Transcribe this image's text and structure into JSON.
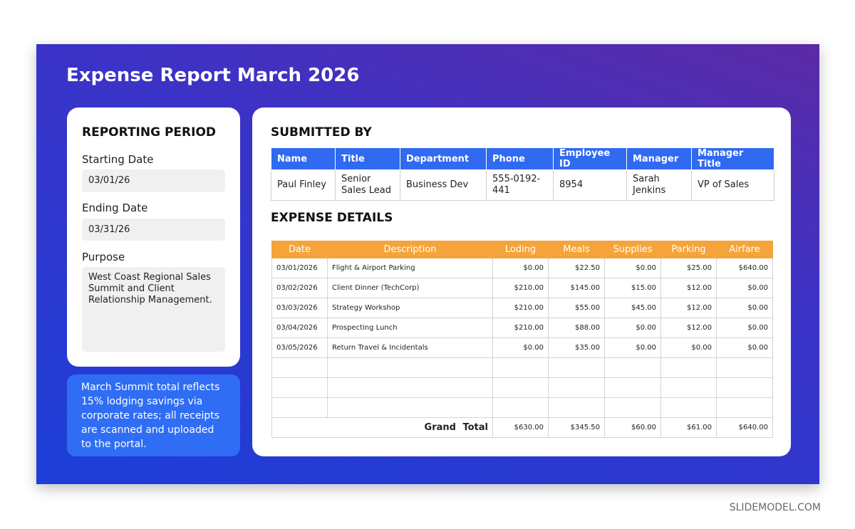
{
  "title": "Expense Report March 2026",
  "reporting_period": {
    "heading": "REPORTING PERIOD",
    "starting_label": "Starting Date",
    "starting_value": "03/01/26",
    "ending_label": "Ending Date",
    "ending_value": "03/31/26",
    "purpose_label": "Purpose",
    "purpose_value": "West Coast Regional Sales Summit and Client Relationship Management."
  },
  "note": "March Summit total reflects 15% lodging savings via corporate rates; all receipts are scanned and uploaded to the portal.",
  "submitted": {
    "heading": "SUBMITTED BY",
    "columns": [
      "Name",
      "Title",
      "Department",
      "Phone",
      "Employee ID",
      "Manager",
      "Manager Title"
    ],
    "row": [
      "Paul Finley",
      "Senior Sales Lead",
      "Business Dev",
      "555-0192-441",
      "8954",
      "Sarah Jenkins",
      "VP of Sales"
    ]
  },
  "expense": {
    "heading": "EXPENSE DETAILS",
    "columns": [
      "Date",
      "Description",
      "Loding",
      "Meals",
      "Supplies",
      "Parking",
      "Airfare"
    ],
    "rows": [
      [
        "03/01/2026",
        "Flight & Airport Parking",
        "$0.00",
        "$22.50",
        "$0.00",
        "$25.00",
        "$640.00"
      ],
      [
        "03/02/2026",
        "Client Dinner (TechCorp)",
        "$210.00",
        "$145.00",
        "$15.00",
        "$12.00",
        "$0.00"
      ],
      [
        "03/03/2026",
        "Strategy Workshop",
        "$210.00",
        "$55.00",
        "$45.00",
        "$12.00",
        "$0.00"
      ],
      [
        "03/04/2026",
        "Prospecting Lunch",
        "$210.00",
        "$88.00",
        "$0.00",
        "$12.00",
        "$0.00"
      ],
      [
        "03/05/2026",
        "Return Travel & Incidentals",
        "$0.00",
        "$35.00",
        "$0.00",
        "$0.00",
        "$0.00"
      ]
    ],
    "total_label": "Grand Total",
    "totals": [
      "$630.00",
      "$345.50",
      "$60.00",
      "$61.00",
      "$640.00"
    ]
  },
  "footer": "SLIDEMODEL.COM"
}
